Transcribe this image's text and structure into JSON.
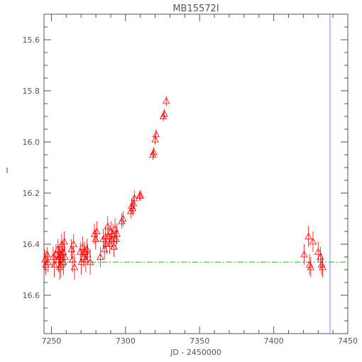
{
  "chart_data": {
    "type": "scatter",
    "title": "MB15572I",
    "xlabel": "JD - 2450000",
    "ylabel": "I",
    "xlim": [
      7245,
      7450
    ],
    "ylim": [
      16.75,
      15.5
    ],
    "y_inverted": true,
    "x_ticks": [
      7250,
      7300,
      7350,
      7400,
      7450
    ],
    "x_minor_ticks_per_major": 5,
    "y_ticks": [
      15.6,
      15.8,
      16.0,
      16.2,
      16.4,
      16.6
    ],
    "y_tick_labels": [
      "15.6",
      "15.8",
      "16.0",
      "16.2",
      "16.4",
      "16.6"
    ],
    "y_minor_ticks_per_major": 4,
    "x_tick_labels": [
      "7250",
      "7300",
      "7350",
      "7400",
      "7450"
    ],
    "grid": false,
    "marker": "triangle",
    "colors": {
      "points": "#ff0000",
      "baseline": "#00cc00",
      "vline": "#8080ff",
      "frame": "#555555"
    },
    "baseline": {
      "y": 16.47,
      "x_start": 7245,
      "x_end": 7450,
      "style": "dash-dot"
    },
    "vertical_line": {
      "x": 7438
    },
    "series": [
      {
        "points": [
          [
            7245.5,
            16.46,
            0.04
          ],
          [
            7246.2,
            16.48,
            0.04
          ],
          [
            7247.0,
            16.44,
            0.03
          ],
          [
            7247.8,
            16.47,
            0.04
          ],
          [
            7251.2,
            16.45,
            0.04
          ],
          [
            7252.0,
            16.48,
            0.05
          ],
          [
            7253.1,
            16.44,
            0.04
          ],
          [
            7254.3,
            16.42,
            0.04
          ],
          [
            7254.8,
            16.46,
            0.05
          ],
          [
            7255.2,
            16.45,
            0.04
          ],
          [
            7255.6,
            16.49,
            0.05
          ],
          [
            7256.0,
            16.44,
            0.04
          ],
          [
            7256.4,
            16.48,
            0.05
          ],
          [
            7256.9,
            16.4,
            0.04
          ],
          [
            7257.3,
            16.45,
            0.04
          ],
          [
            7257.8,
            16.43,
            0.04
          ],
          [
            7258.2,
            16.47,
            0.05
          ],
          [
            7258.7,
            16.39,
            0.04
          ],
          [
            7259.2,
            16.45,
            0.04
          ],
          [
            7263.5,
            16.42,
            0.04
          ],
          [
            7264.2,
            16.46,
            0.05
          ],
          [
            7265.0,
            16.4,
            0.04
          ],
          [
            7265.6,
            16.49,
            0.05
          ],
          [
            7269.5,
            16.43,
            0.04
          ],
          [
            7270.2,
            16.47,
            0.05
          ],
          [
            7271.0,
            16.41,
            0.04
          ],
          [
            7271.8,
            16.45,
            0.04
          ],
          [
            7272.5,
            16.43,
            0.04
          ],
          [
            7273.2,
            16.46,
            0.05
          ],
          [
            7273.9,
            16.42,
            0.04
          ],
          [
            7274.5,
            16.44,
            0.04
          ],
          [
            7276.2,
            16.47,
            0.05
          ],
          [
            7279.0,
            16.36,
            0.04
          ],
          [
            7279.8,
            16.38,
            0.04
          ],
          [
            7280.6,
            16.35,
            0.04
          ],
          [
            7283.0,
            16.45,
            0.04
          ],
          [
            7285.0,
            16.38,
            0.04
          ],
          [
            7285.8,
            16.42,
            0.04
          ],
          [
            7286.5,
            16.37,
            0.04
          ],
          [
            7287.2,
            16.4,
            0.04
          ],
          [
            7288.0,
            16.33,
            0.04
          ],
          [
            7288.7,
            16.37,
            0.04
          ],
          [
            7289.4,
            16.4,
            0.04
          ],
          [
            7290.1,
            16.35,
            0.04
          ],
          [
            7290.8,
            16.38,
            0.04
          ],
          [
            7291.5,
            16.36,
            0.04
          ],
          [
            7292.2,
            16.41,
            0.04
          ],
          [
            7292.9,
            16.34,
            0.04
          ],
          [
            7293.6,
            16.38,
            0.04
          ],
          [
            7294.2,
            16.36,
            0.04
          ],
          [
            7297.5,
            16.31,
            0.03
          ],
          [
            7298.3,
            16.3,
            0.03
          ],
          [
            7303.5,
            16.27,
            0.03
          ],
          [
            7304.2,
            16.25,
            0.03
          ],
          [
            7304.9,
            16.26,
            0.03
          ],
          [
            7305.4,
            16.24,
            0.03
          ],
          [
            7306.0,
            16.22,
            0.03
          ],
          [
            7309.5,
            16.21,
            0.02
          ],
          [
            7310.2,
            16.21,
            0.02
          ],
          [
            7318.5,
            16.05,
            0.02
          ],
          [
            7319.0,
            16.04,
            0.02
          ],
          [
            7320.0,
            15.99,
            0.02
          ],
          [
            7320.6,
            15.97,
            0.02
          ],
          [
            7325.5,
            15.9,
            0.02
          ],
          [
            7326.2,
            15.89,
            0.02
          ],
          [
            7327.5,
            15.84,
            0.02
          ],
          [
            7420.5,
            16.44,
            0.04
          ],
          [
            7423.5,
            16.37,
            0.04
          ],
          [
            7424.2,
            16.48,
            0.04
          ],
          [
            7425.0,
            16.49,
            0.04
          ],
          [
            7426.5,
            16.39,
            0.04
          ],
          [
            7430.0,
            16.43,
            0.04
          ],
          [
            7431.5,
            16.45,
            0.04
          ],
          [
            7432.3,
            16.48,
            0.04
          ],
          [
            7433.0,
            16.49,
            0.04
          ]
        ]
      }
    ]
  }
}
